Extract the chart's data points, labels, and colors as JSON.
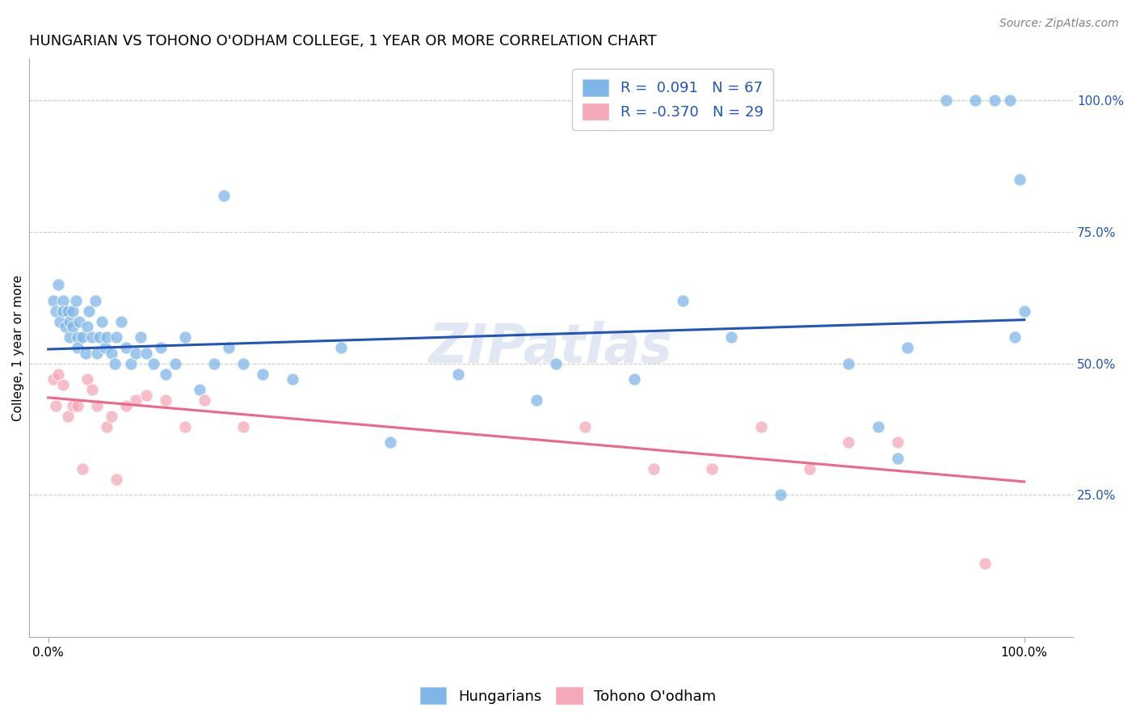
{
  "title": "HUNGARIAN VS TOHONO O'ODHAM COLLEGE, 1 YEAR OR MORE CORRELATION CHART",
  "source": "Source: ZipAtlas.com",
  "ylabel": "College, 1 year or more",
  "xlim": [
    -0.02,
    1.05
  ],
  "ylim": [
    -0.02,
    1.08
  ],
  "xtick_labels": [
    "0.0%",
    "100.0%"
  ],
  "xtick_positions": [
    0,
    1
  ],
  "right_ytick_labels": [
    "25.0%",
    "50.0%",
    "75.0%",
    "100.0%"
  ],
  "right_ytick_positions": [
    0.25,
    0.5,
    0.75,
    1.0
  ],
  "blue_color": "#7EB6E8",
  "pink_color": "#F4A8B8",
  "blue_line_color": "#2255BB",
  "pink_line_color": "#EE6688",
  "watermark": "ZIPatlas",
  "blue_scatter_x": [
    0.005,
    0.008,
    0.01,
    0.012,
    0.015,
    0.015,
    0.018,
    0.02,
    0.022,
    0.022,
    0.025,
    0.025,
    0.028,
    0.03,
    0.03,
    0.032,
    0.035,
    0.038,
    0.04,
    0.042,
    0.045,
    0.048,
    0.05,
    0.052,
    0.055,
    0.058,
    0.06,
    0.065,
    0.068,
    0.07,
    0.075,
    0.08,
    0.085,
    0.09,
    0.095,
    0.1,
    0.108,
    0.115,
    0.12,
    0.13,
    0.14,
    0.155,
    0.17,
    0.185,
    0.2,
    0.22,
    0.25,
    0.3,
    0.35,
    0.42,
    0.5,
    0.52,
    0.6,
    0.65,
    0.7,
    0.75,
    0.82,
    0.85,
    0.87,
    0.88,
    0.92,
    0.95,
    0.97,
    0.985,
    0.99,
    0.995,
    1.0
  ],
  "blue_scatter_y": [
    0.62,
    0.6,
    0.65,
    0.58,
    0.62,
    0.6,
    0.57,
    0.6,
    0.58,
    0.55,
    0.6,
    0.57,
    0.62,
    0.55,
    0.53,
    0.58,
    0.55,
    0.52,
    0.57,
    0.6,
    0.55,
    0.62,
    0.52,
    0.55,
    0.58,
    0.53,
    0.55,
    0.52,
    0.5,
    0.55,
    0.58,
    0.53,
    0.5,
    0.52,
    0.55,
    0.52,
    0.5,
    0.53,
    0.48,
    0.5,
    0.55,
    0.45,
    0.5,
    0.53,
    0.5,
    0.48,
    0.47,
    0.53,
    0.35,
    0.48,
    0.43,
    0.5,
    0.47,
    0.62,
    0.55,
    0.25,
    0.5,
    0.38,
    0.32,
    0.53,
    1.0,
    1.0,
    1.0,
    1.0,
    0.55,
    0.85,
    0.6
  ],
  "blue_outlier_x": [
    0.18
  ],
  "blue_outlier_y": [
    0.82
  ],
  "pink_scatter_x": [
    0.005,
    0.008,
    0.01,
    0.015,
    0.02,
    0.025,
    0.03,
    0.035,
    0.04,
    0.045,
    0.05,
    0.06,
    0.065,
    0.07,
    0.08,
    0.09,
    0.1,
    0.12,
    0.14,
    0.16,
    0.2,
    0.55,
    0.62,
    0.68,
    0.73,
    0.78,
    0.82,
    0.87,
    0.96
  ],
  "pink_scatter_y": [
    0.47,
    0.42,
    0.48,
    0.46,
    0.4,
    0.42,
    0.42,
    0.3,
    0.47,
    0.45,
    0.42,
    0.38,
    0.4,
    0.28,
    0.42,
    0.43,
    0.44,
    0.43,
    0.38,
    0.43,
    0.38,
    0.38,
    0.3,
    0.3,
    0.38,
    0.3,
    0.35,
    0.35,
    0.12
  ],
  "blue_trend_x": [
    0,
    1
  ],
  "blue_trend_y": [
    0.527,
    0.583
  ],
  "pink_trend_x": [
    0,
    1
  ],
  "pink_trend_y": [
    0.435,
    0.275
  ],
  "background_color": "#ffffff",
  "grid_color": "#cccccc",
  "title_fontsize": 13,
  "source_fontsize": 10,
  "axis_label_fontsize": 11,
  "tick_fontsize": 11,
  "legend_fontsize": 13,
  "watermark_fontsize": 48,
  "watermark_color": "#aabbdd",
  "watermark_alpha": 0.35
}
